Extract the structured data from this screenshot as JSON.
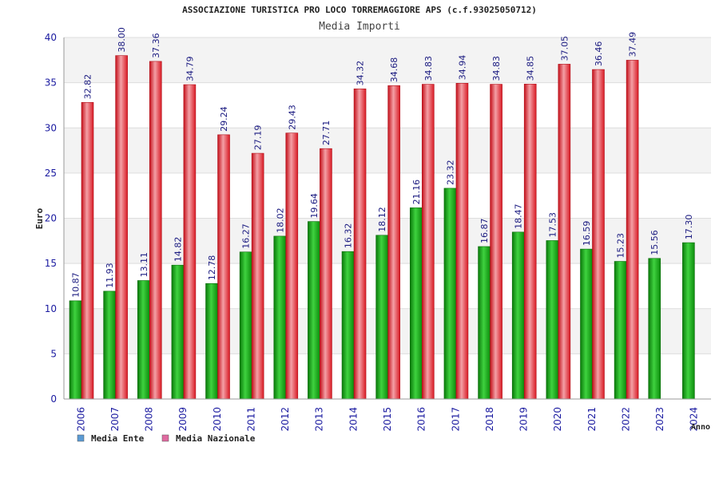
{
  "chart_data": {
    "type": "bar",
    "title": "ASSOCIAZIONE TURISTICA PRO LOCO TORREMAGGIORE APS (c.f.93025050712)",
    "subtitle": "Media Importi",
    "ylabel": "Euro",
    "xlabel": "Anno",
    "ylim": [
      0,
      40
    ],
    "yticks": [
      "0",
      "5",
      "10",
      "15",
      "20",
      "25",
      "30",
      "35",
      "40"
    ],
    "grid": true,
    "legend_position": "bottom-left",
    "categories": [
      "2006",
      "2007",
      "2008",
      "2009",
      "2010",
      "2011",
      "2012",
      "2013",
      "2014",
      "2015",
      "2016",
      "2017",
      "2018",
      "2019",
      "2020",
      "2021",
      "2022",
      "2023",
      "2024"
    ],
    "series": [
      {
        "name": "Media Ente",
        "color": "#12a812",
        "legend_color": "#5b9bd5",
        "values": [
          10.87,
          11.93,
          13.11,
          14.82,
          12.78,
          16.27,
          18.02,
          19.64,
          16.32,
          18.12,
          21.16,
          23.32,
          16.87,
          18.47,
          17.53,
          16.59,
          15.23,
          15.56,
          17.3
        ],
        "labels": [
          "10.87",
          "11.93",
          "13.11",
          "14.82",
          "12.78",
          "16.27",
          "18.02",
          "19.64",
          "16.32",
          "18.12",
          "21.16",
          "23.32",
          "16.87",
          "18.47",
          "17.53",
          "16.59",
          "15.23",
          "15.56",
          "17.30"
        ]
      },
      {
        "name": "Media Nazionale",
        "color": "#e8262e",
        "legend_color": "#e06aa0",
        "values": [
          32.82,
          38.0,
          37.36,
          34.79,
          29.24,
          27.19,
          29.43,
          27.71,
          34.32,
          34.68,
          34.83,
          34.94,
          34.83,
          34.85,
          37.05,
          36.46,
          37.49,
          null,
          null
        ],
        "labels": [
          "32.82",
          "38.00",
          "37.36",
          "34.79",
          "29.24",
          "27.19",
          "29.43",
          "27.71",
          "34.32",
          "34.68",
          "34.83",
          "34.94",
          "34.83",
          "34.85",
          "37.05",
          "36.46",
          "37.49",
          "",
          ""
        ]
      }
    ]
  }
}
